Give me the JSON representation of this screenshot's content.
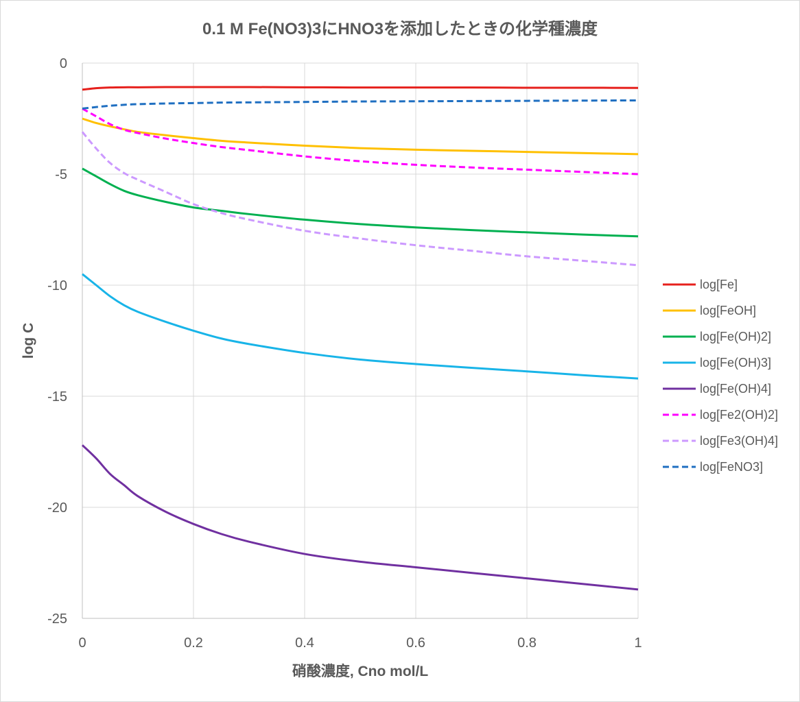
{
  "chart_data": {
    "type": "line",
    "title": "0.1 M Fe(NO3)3にHNO3を添加したときの化学種濃度",
    "xlabel": "硝酸濃度, Cno mol/L",
    "ylabel": "log C",
    "xlim": [
      0,
      1
    ],
    "ylim": [
      -25,
      0
    ],
    "xticks": [
      0,
      0.2,
      0.4,
      0.6,
      0.8,
      1
    ],
    "xtick_labels": [
      "0",
      "0.2",
      "0.4",
      "0.6",
      "0.8",
      "1"
    ],
    "yticks": [
      0,
      -5,
      -10,
      -15,
      -20,
      -25
    ],
    "ytick_labels": [
      "0",
      "-5",
      "-10",
      "-15",
      "-20",
      "-25"
    ],
    "grid": true,
    "legend_position": "right",
    "x": [
      0,
      0.025,
      0.05,
      0.075,
      0.1,
      0.15,
      0.2,
      0.25,
      0.3,
      0.4,
      0.5,
      0.6,
      0.7,
      0.8,
      0.9,
      1.0
    ],
    "series": [
      {
        "name": "log[Fe]",
        "color": "#e6201c",
        "dash": false,
        "values": [
          -1.2,
          -1.13,
          -1.1,
          -1.09,
          -1.09,
          -1.08,
          -1.08,
          -1.08,
          -1.08,
          -1.09,
          -1.1,
          -1.1,
          -1.1,
          -1.11,
          -1.11,
          -1.12
        ]
      },
      {
        "name": "log[FeOH]",
        "color": "#ffc000",
        "dash": false,
        "values": [
          -2.5,
          -2.7,
          -2.85,
          -2.98,
          -3.1,
          -3.25,
          -3.38,
          -3.5,
          -3.58,
          -3.72,
          -3.83,
          -3.9,
          -3.95,
          -4.0,
          -4.05,
          -4.1
        ]
      },
      {
        "name": "log[Fe(OH)2]",
        "color": "#00b050",
        "dash": false,
        "values": [
          -4.75,
          -5.1,
          -5.45,
          -5.75,
          -5.95,
          -6.25,
          -6.5,
          -6.65,
          -6.8,
          -7.05,
          -7.25,
          -7.4,
          -7.52,
          -7.62,
          -7.72,
          -7.8
        ]
      },
      {
        "name": "log[Fe(OH)3]",
        "color": "#18b4e8",
        "dash": false,
        "values": [
          -9.5,
          -10.0,
          -10.5,
          -10.9,
          -11.2,
          -11.65,
          -12.05,
          -12.4,
          -12.65,
          -13.05,
          -13.35,
          -13.55,
          -13.72,
          -13.88,
          -14.05,
          -14.2
        ]
      },
      {
        "name": "log[Fe(OH)4]",
        "color": "#7030a0",
        "dash": false,
        "values": [
          -17.2,
          -17.8,
          -18.5,
          -19.0,
          -19.5,
          -20.2,
          -20.75,
          -21.2,
          -21.55,
          -22.1,
          -22.45,
          -22.7,
          -22.95,
          -23.2,
          -23.45,
          -23.7
        ]
      },
      {
        "name": "log[Fe2(OH)2]",
        "color": "#ff00ff",
        "dash": true,
        "values": [
          -2.05,
          -2.4,
          -2.75,
          -3.0,
          -3.15,
          -3.4,
          -3.6,
          -3.78,
          -3.92,
          -4.2,
          -4.42,
          -4.58,
          -4.7,
          -4.8,
          -4.9,
          -5.0
        ]
      },
      {
        "name": "log[Fe3(OH)4]",
        "color": "#cc99ff",
        "dash": true,
        "values": [
          -3.1,
          -3.85,
          -4.5,
          -4.95,
          -5.25,
          -5.8,
          -6.35,
          -6.75,
          -7.05,
          -7.55,
          -7.9,
          -8.2,
          -8.45,
          -8.7,
          -8.9,
          -9.1
        ]
      },
      {
        "name": "log[FeNO3]",
        "color": "#1f6fc1",
        "dash": true,
        "values": [
          -2.05,
          -1.98,
          -1.92,
          -1.88,
          -1.85,
          -1.82,
          -1.8,
          -1.78,
          -1.77,
          -1.75,
          -1.73,
          -1.72,
          -1.71,
          -1.7,
          -1.69,
          -1.68
        ]
      }
    ]
  }
}
